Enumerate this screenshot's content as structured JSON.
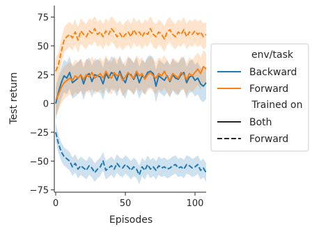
{
  "chart_data": {
    "type": "line",
    "xlabel": "Episodes",
    "ylabel": "Test return",
    "xlim": [
      -1,
      108
    ],
    "ylim": [
      -77,
      85
    ],
    "xticks": [
      0,
      50,
      100
    ],
    "yticks": [
      -75,
      -50,
      -25,
      0,
      25,
      50,
      75
    ],
    "xtick_labels": [
      "0",
      "50",
      "100"
    ],
    "ytick_labels": [
      "−75",
      "−50",
      "−25",
      "0",
      "25",
      "50",
      "75"
    ],
    "grid": false,
    "legend_placement": "right",
    "colors": {
      "Backward": "#1f77b4",
      "Forward": "#ff7f0e",
      "axis": "#262626"
    },
    "legend": {
      "hue_title": "env/task",
      "hue_entries": [
        "Backward",
        "Forward"
      ],
      "style_title": "Trained on",
      "style_entries": [
        "Both",
        "Forward"
      ]
    },
    "series": [
      {
        "name": "Backward",
        "style": "Both",
        "env": "Backward",
        "points": [
          [
            0,
            0
          ],
          [
            2,
            10
          ],
          [
            4,
            18
          ],
          [
            6,
            24
          ],
          [
            8,
            22
          ],
          [
            10,
            27
          ],
          [
            12,
            18
          ],
          [
            14,
            20
          ],
          [
            16,
            22
          ],
          [
            18,
            25
          ],
          [
            20,
            17
          ],
          [
            22,
            24
          ],
          [
            24,
            26
          ],
          [
            26,
            19
          ],
          [
            28,
            25
          ],
          [
            30,
            24
          ],
          [
            32,
            23
          ],
          [
            34,
            17
          ],
          [
            36,
            26
          ],
          [
            38,
            22
          ],
          [
            40,
            27
          ],
          [
            42,
            25
          ],
          [
            44,
            20
          ],
          [
            46,
            28
          ],
          [
            48,
            22
          ],
          [
            50,
            18
          ],
          [
            52,
            26
          ],
          [
            54,
            25
          ],
          [
            56,
            21
          ],
          [
            58,
            26
          ],
          [
            60,
            18
          ],
          [
            62,
            24
          ],
          [
            64,
            22
          ],
          [
            66,
            27
          ],
          [
            68,
            28
          ],
          [
            70,
            26
          ],
          [
            72,
            15
          ],
          [
            74,
            24
          ],
          [
            76,
            22
          ],
          [
            78,
            20
          ],
          [
            80,
            24
          ],
          [
            82,
            19
          ],
          [
            84,
            25
          ],
          [
            86,
            22
          ],
          [
            88,
            21
          ],
          [
            90,
            25
          ],
          [
            92,
            27
          ],
          [
            94,
            18
          ],
          [
            96,
            23
          ],
          [
            98,
            24
          ],
          [
            100,
            20
          ],
          [
            102,
            22
          ],
          [
            104,
            17
          ],
          [
            106,
            15
          ],
          [
            108,
            18
          ]
        ],
        "band": 14
      },
      {
        "name": "Forward",
        "style": "Both",
        "env": "Forward",
        "points": [
          [
            0,
            3
          ],
          [
            2,
            8
          ],
          [
            4,
            14
          ],
          [
            6,
            18
          ],
          [
            8,
            20
          ],
          [
            10,
            22
          ],
          [
            12,
            20
          ],
          [
            14,
            24
          ],
          [
            16,
            22
          ],
          [
            18,
            25
          ],
          [
            20,
            21
          ],
          [
            22,
            25
          ],
          [
            24,
            23
          ],
          [
            26,
            27
          ],
          [
            28,
            22
          ],
          [
            30,
            24
          ],
          [
            32,
            26
          ],
          [
            34,
            22
          ],
          [
            36,
            28
          ],
          [
            38,
            24
          ],
          [
            40,
            22
          ],
          [
            42,
            27
          ],
          [
            44,
            24
          ],
          [
            46,
            26
          ],
          [
            48,
            20
          ],
          [
            50,
            23
          ],
          [
            52,
            27
          ],
          [
            54,
            24
          ],
          [
            56,
            22
          ],
          [
            58,
            28
          ],
          [
            60,
            24
          ],
          [
            62,
            26
          ],
          [
            64,
            21
          ],
          [
            66,
            25
          ],
          [
            68,
            27
          ],
          [
            70,
            24
          ],
          [
            72,
            22
          ],
          [
            74,
            26
          ],
          [
            76,
            24
          ],
          [
            78,
            28
          ],
          [
            80,
            23
          ],
          [
            82,
            20
          ],
          [
            84,
            26
          ],
          [
            86,
            24
          ],
          [
            88,
            22
          ],
          [
            90,
            27
          ],
          [
            92,
            25
          ],
          [
            94,
            21
          ],
          [
            96,
            26
          ],
          [
            98,
            24
          ],
          [
            100,
            27
          ],
          [
            102,
            30
          ],
          [
            104,
            26
          ],
          [
            106,
            32
          ],
          [
            108,
            30
          ]
        ],
        "band": 14
      },
      {
        "name": "Backward",
        "style": "Forward",
        "env": "Backward",
        "points": [
          [
            0,
            -25
          ],
          [
            2,
            -35
          ],
          [
            4,
            -42
          ],
          [
            6,
            -46
          ],
          [
            8,
            -48
          ],
          [
            10,
            -50
          ],
          [
            12,
            -55
          ],
          [
            14,
            -52
          ],
          [
            16,
            -57
          ],
          [
            18,
            -54
          ],
          [
            20,
            -56
          ],
          [
            22,
            -58
          ],
          [
            24,
            -54
          ],
          [
            26,
            -56
          ],
          [
            28,
            -60
          ],
          [
            30,
            -57
          ],
          [
            32,
            -55
          ],
          [
            34,
            -50
          ],
          [
            36,
            -58
          ],
          [
            38,
            -56
          ],
          [
            40,
            -54
          ],
          [
            42,
            -57
          ],
          [
            44,
            -52
          ],
          [
            46,
            -55
          ],
          [
            48,
            -56
          ],
          [
            50,
            -53
          ],
          [
            52,
            -55
          ],
          [
            54,
            -58
          ],
          [
            56,
            -55
          ],
          [
            58,
            -57
          ],
          [
            60,
            -62
          ],
          [
            62,
            -55
          ],
          [
            64,
            -58
          ],
          [
            66,
            -53
          ],
          [
            68,
            -57
          ],
          [
            70,
            -55
          ],
          [
            72,
            -58
          ],
          [
            74,
            -54
          ],
          [
            76,
            -56
          ],
          [
            78,
            -55
          ],
          [
            80,
            -57
          ],
          [
            82,
            -56
          ],
          [
            84,
            -54
          ],
          [
            86,
            -53
          ],
          [
            88,
            -56
          ],
          [
            90,
            -55
          ],
          [
            92,
            -57
          ],
          [
            94,
            -53
          ],
          [
            96,
            -54
          ],
          [
            98,
            -56
          ],
          [
            100,
            -55
          ],
          [
            102,
            -53
          ],
          [
            104,
            -58
          ],
          [
            106,
            -56
          ],
          [
            108,
            -60
          ]
        ],
        "band": 8
      },
      {
        "name": "Forward",
        "style": "Forward",
        "env": "Forward",
        "points": [
          [
            0,
            28
          ],
          [
            2,
            34
          ],
          [
            4,
            45
          ],
          [
            6,
            55
          ],
          [
            8,
            58
          ],
          [
            10,
            60
          ],
          [
            12,
            57
          ],
          [
            14,
            62
          ],
          [
            16,
            55
          ],
          [
            18,
            63
          ],
          [
            20,
            60
          ],
          [
            22,
            58
          ],
          [
            24,
            63
          ],
          [
            26,
            61
          ],
          [
            28,
            65
          ],
          [
            30,
            60
          ],
          [
            32,
            62
          ],
          [
            34,
            58
          ],
          [
            36,
            63
          ],
          [
            38,
            60
          ],
          [
            40,
            65
          ],
          [
            42,
            62
          ],
          [
            44,
            58
          ],
          [
            46,
            61
          ],
          [
            48,
            57
          ],
          [
            50,
            60
          ],
          [
            52,
            62
          ],
          [
            54,
            58
          ],
          [
            56,
            64
          ],
          [
            58,
            60
          ],
          [
            60,
            62
          ],
          [
            62,
            58
          ],
          [
            64,
            62
          ],
          [
            66,
            60
          ],
          [
            68,
            65
          ],
          [
            70,
            60
          ],
          [
            72,
            58
          ],
          [
            74,
            62
          ],
          [
            76,
            60
          ],
          [
            78,
            56
          ],
          [
            80,
            62
          ],
          [
            82,
            64
          ],
          [
            84,
            60
          ],
          [
            86,
            58
          ],
          [
            88,
            62
          ],
          [
            90,
            60
          ],
          [
            92,
            64
          ],
          [
            94,
            58
          ],
          [
            96,
            62
          ],
          [
            98,
            60
          ],
          [
            100,
            63
          ],
          [
            102,
            60
          ],
          [
            104,
            62
          ],
          [
            106,
            58
          ],
          [
            108,
            60
          ]
        ],
        "band": 11
      }
    ]
  }
}
